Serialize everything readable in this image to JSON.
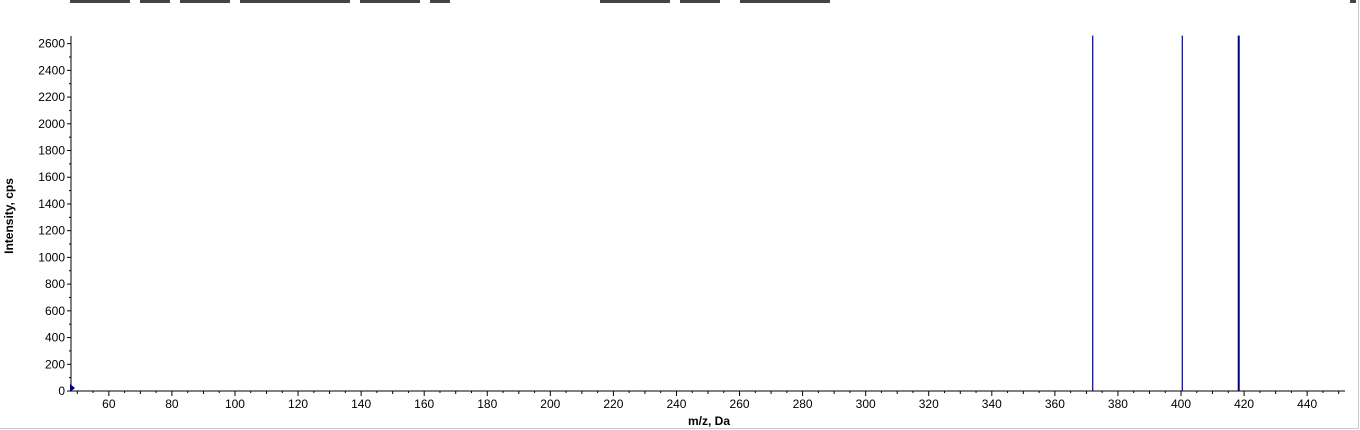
{
  "chart_data": {
    "type": "bar",
    "title": "",
    "xlabel": "m/z, Da",
    "ylabel": "Intensity, cps",
    "xlim": [
      48,
      452
    ],
    "ylim": [
      0,
      2660
    ],
    "x_ticks": [
      60,
      80,
      100,
      120,
      140,
      160,
      180,
      200,
      220,
      240,
      260,
      280,
      300,
      320,
      340,
      360,
      380,
      400,
      420,
      440
    ],
    "y_ticks": [
      0,
      200,
      400,
      600,
      800,
      1000,
      1200,
      1400,
      1600,
      1800,
      2000,
      2200,
      2400,
      2600
    ],
    "grid": false,
    "legend": "none",
    "series": [
      {
        "color": "#00007f",
        "peaks": [
          {
            "x": 372.0,
            "y": 2660
          },
          {
            "x": 400.4,
            "y": 2660
          },
          {
            "x": 418.3,
            "y": 2660
          }
        ]
      }
    ],
    "marker": {
      "x": 48,
      "y": 0,
      "color": "#00007f"
    }
  }
}
